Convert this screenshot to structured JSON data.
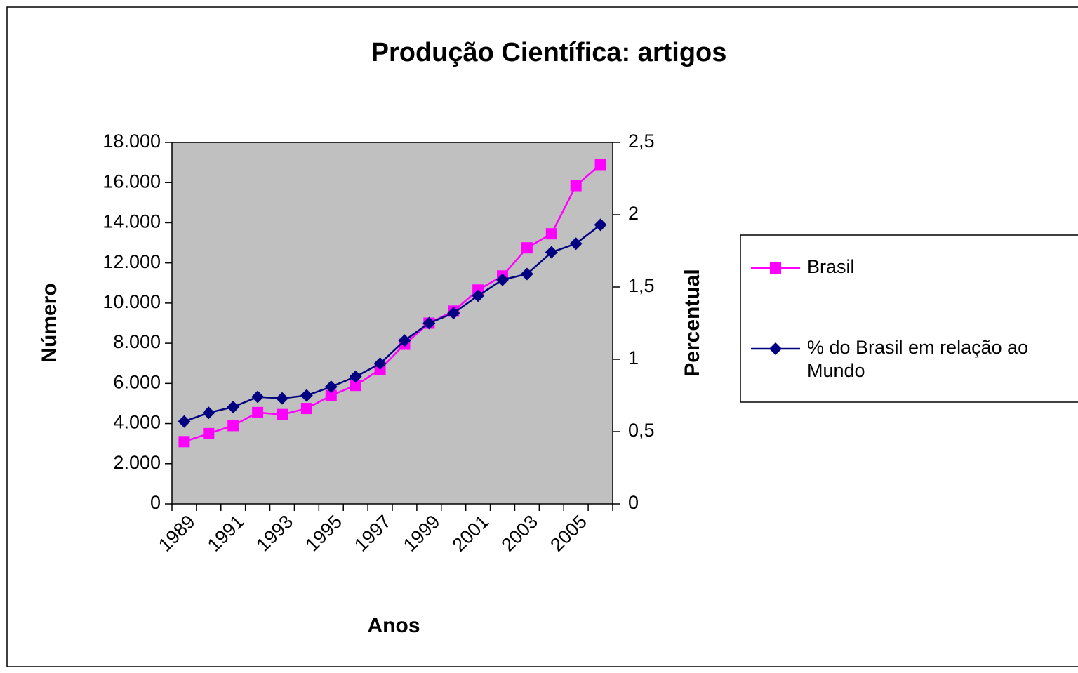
{
  "chart_data": {
    "type": "line",
    "title": "Produção Científica: artigos",
    "x_label": "Anos",
    "y_label": "Número",
    "y2_label": "Percentual",
    "categories": [
      "1989",
      null,
      "1991",
      null,
      "1993",
      null,
      "1995",
      null,
      "1997",
      null,
      "1999",
      null,
      "2001",
      null,
      "2003",
      null,
      "2005",
      null
    ],
    "series": [
      {
        "name": "Brasil",
        "color": "#ff00ff",
        "marker": "square",
        "values": [
          3100,
          3500,
          3900,
          4550,
          4450,
          4750,
          5400,
          5900,
          6700,
          7950,
          9000,
          9600,
          10650,
          11350,
          12750,
          13450,
          15850,
          16900
        ]
      },
      {
        "name": "% do Brasil em relação ao Mundo",
        "color": "#000080",
        "marker": "diamond",
        "axis": "y2",
        "values": [
          0.57,
          0.63,
          0.67,
          0.74,
          0.73,
          0.75,
          0.81,
          0.88,
          0.97,
          1.13,
          1.25,
          1.32,
          1.44,
          1.55,
          1.59,
          1.74,
          1.8,
          1.93
        ]
      }
    ],
    "ylim": [
      0,
      18000
    ],
    "yticks": [
      0,
      {
        "value": 2000,
        "label": "2.000"
      },
      {
        "value": 4000,
        "label": "4.000"
      },
      {
        "value": 6000,
        "label": "6.000"
      },
      {
        "value": 8000,
        "label": "8.000"
      },
      {
        "value": 10000,
        "label": "10.000"
      },
      {
        "value": 12000,
        "label": "12.000"
      },
      {
        "value": 14000,
        "label": "14.000"
      },
      {
        "value": 16000,
        "label": "16.000"
      },
      {
        "value": 18000,
        "label": "18.000"
      }
    ],
    "y2lim": [
      0,
      2.5
    ],
    "y2ticks": [
      0,
      {
        "value": 0.5,
        "label": "0,5"
      },
      1,
      {
        "value": 1.5,
        "label": "1,5"
      },
      2,
      {
        "value": 2.5,
        "label": "2,5"
      }
    ],
    "plot_background": "#c0c0c0",
    "legend": "right"
  }
}
